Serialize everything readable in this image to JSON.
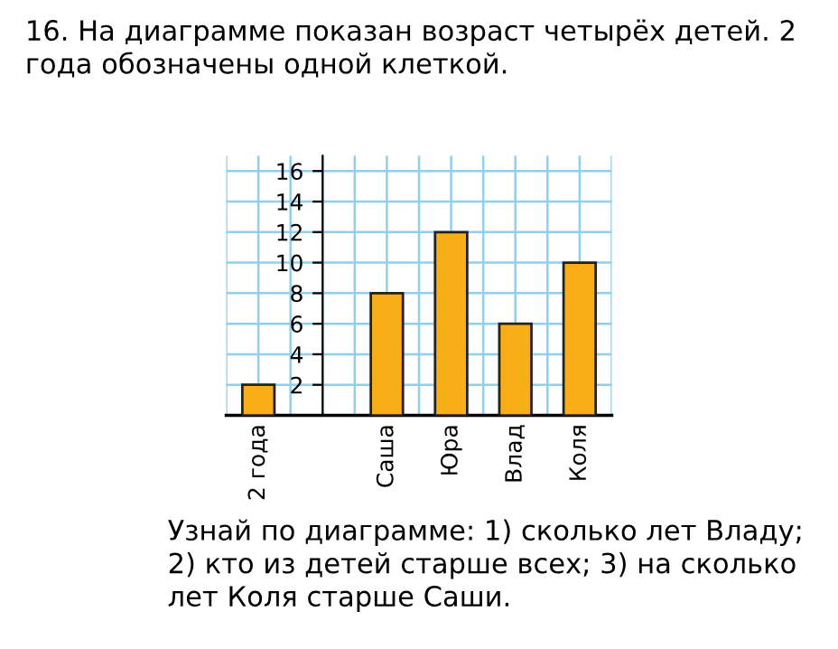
{
  "chart_data": {
    "type": "bar",
    "title": "16. На диаграмме показан возраст четырёх детей. 2 года обозначены одной клеткой.",
    "annotations": [
      "Узнай по диаграмме: 1) сколько лет Владу; 2) кто из детей старше всех; 3) на сколько лет Коля старше Саши."
    ],
    "categories": [
      "2 года",
      null,
      "Саша",
      "Юра",
      "Влад",
      "Коля"
    ],
    "values": [
      2,
      null,
      8,
      12,
      6,
      10
    ],
    "color": "#f8ae16",
    "ylim": [
      0,
      17
    ],
    "yticks": [
      2,
      4,
      6,
      8,
      10,
      12,
      14,
      16
    ],
    "grid": true
  }
}
